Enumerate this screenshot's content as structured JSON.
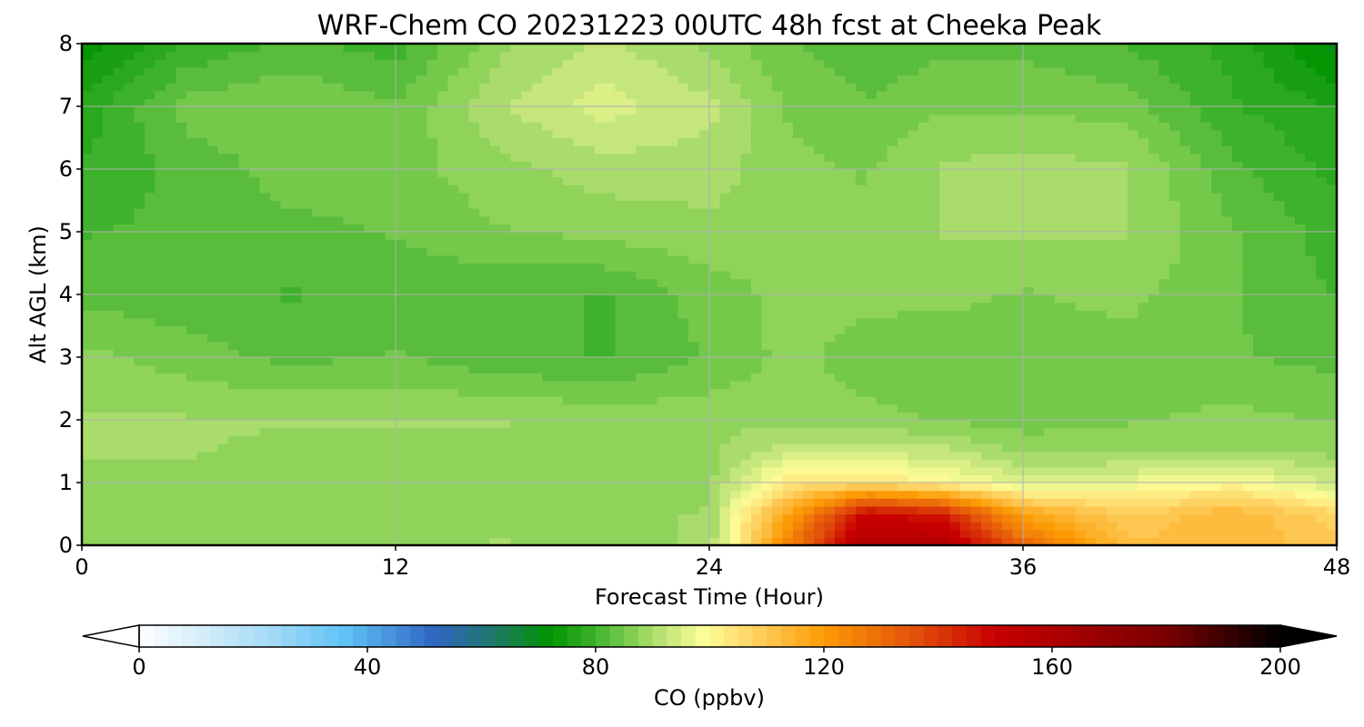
{
  "chart_data": {
    "type": "heatmap",
    "title": "WRF-Chem CO  20231223 00UTC 48h fcst at Cheeka Peak",
    "xlabel": "Forecast Time (Hour)",
    "ylabel": "Alt AGL (km)",
    "xlim": [
      0,
      48
    ],
    "ylim": [
      0,
      8
    ],
    "x_ticks": [
      "0",
      "12",
      "24",
      "36",
      "48"
    ],
    "y_ticks": [
      "0",
      "1",
      "2",
      "3",
      "4",
      "5",
      "6",
      "7",
      "8"
    ],
    "grid": true,
    "x": [
      0,
      4,
      8,
      12,
      16,
      20,
      24,
      27,
      30,
      33,
      36,
      40,
      44,
      48
    ],
    "y": [
      0,
      0.5,
      1,
      1.5,
      2,
      3,
      4,
      5,
      6,
      7,
      8
    ],
    "z": [
      [
        88,
        88,
        88,
        88,
        89,
        88,
        89,
        125,
        160,
        158,
        132,
        112,
        113,
        110
      ],
      [
        88,
        88,
        88,
        88,
        88,
        88,
        89,
        118,
        150,
        145,
        118,
        108,
        114,
        107
      ],
      [
        88,
        88,
        88,
        88,
        88,
        88,
        88,
        103,
        105,
        100,
        95,
        97,
        100,
        93
      ],
      [
        89,
        89,
        88,
        88,
        88,
        88,
        88,
        93,
        93,
        92,
        88,
        88,
        89,
        88
      ],
      [
        89,
        89,
        89,
        89,
        89,
        88,
        88,
        88,
        87,
        86,
        85,
        86,
        87,
        86
      ],
      [
        87,
        85,
        83,
        84,
        82,
        81,
        84,
        87,
        85,
        84,
        85,
        85,
        84,
        83
      ],
      [
        83,
        82,
        81,
        82,
        82,
        81,
        85,
        87,
        87,
        87,
        86,
        87,
        84,
        81
      ],
      [
        81,
        82,
        83,
        84,
        86,
        87,
        88,
        87,
        87,
        89,
        89,
        89,
        84,
        80
      ],
      [
        79,
        82,
        85,
        85,
        88,
        90,
        90,
        87,
        86,
        89,
        90,
        89,
        82,
        78
      ],
      [
        77,
        85,
        86,
        84,
        91,
        95,
        92,
        86,
        84,
        86,
        86,
        85,
        79,
        76
      ],
      [
        72,
        79,
        82,
        80,
        88,
        92,
        88,
        84,
        82,
        83,
        83,
        81,
        78,
        70
      ]
    ],
    "colorbar": {
      "label": "CO  (ppbv)",
      "min": 0,
      "max": 200,
      "ticks": [
        "0",
        "40",
        "80",
        "120",
        "160",
        "200"
      ],
      "extend": "both",
      "stops": [
        {
          "v": 0,
          "c": "#ffffff"
        },
        {
          "v": 22,
          "c": "#a8dcf6"
        },
        {
          "v": 36,
          "c": "#5fc3f5"
        },
        {
          "v": 52,
          "c": "#2f64c2"
        },
        {
          "v": 62,
          "c": "#20786a"
        },
        {
          "v": 72,
          "c": "#009400"
        },
        {
          "v": 80,
          "c": "#3eb22c"
        },
        {
          "v": 86,
          "c": "#7fcd50"
        },
        {
          "v": 92,
          "c": "#c0e478"
        },
        {
          "v": 99,
          "c": "#fdfe99"
        },
        {
          "v": 108,
          "c": "#fed060"
        },
        {
          "v": 120,
          "c": "#fc9b05"
        },
        {
          "v": 136,
          "c": "#e2500b"
        },
        {
          "v": 150,
          "c": "#c80000"
        },
        {
          "v": 180,
          "c": "#7a0000"
        },
        {
          "v": 200,
          "c": "#000000"
        }
      ]
    }
  }
}
